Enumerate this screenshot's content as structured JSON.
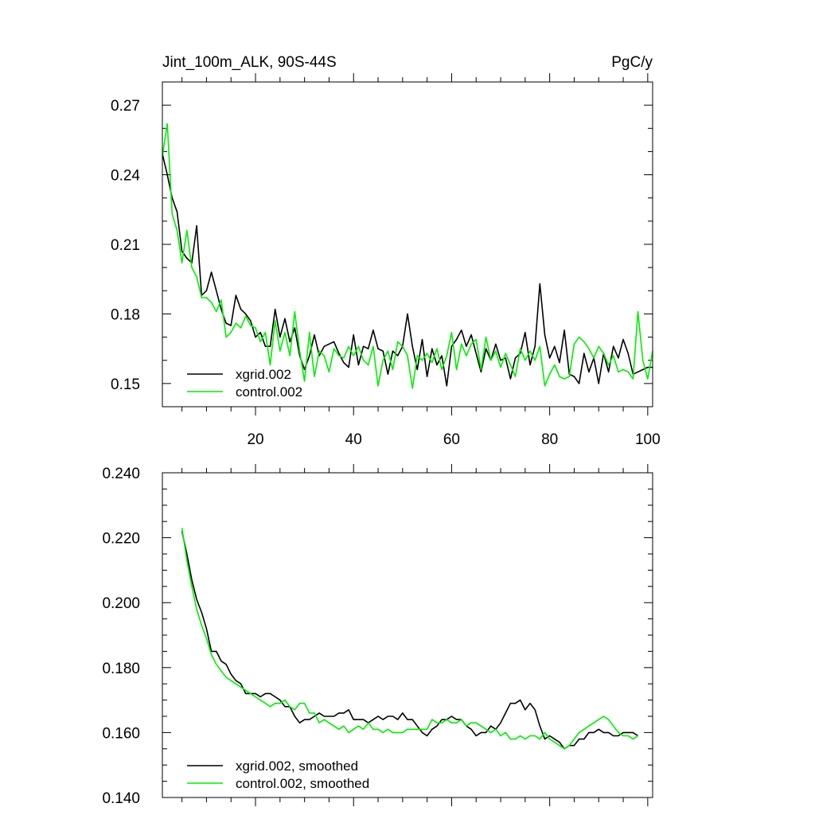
{
  "figure": {
    "title_left": "Jint_100m_ALK, 90S-44S",
    "title_right": "PgC/y"
  },
  "colors": {
    "xgrid": "#000000",
    "control": "#00ee00"
  },
  "chart_data": [
    {
      "type": "line",
      "title": "Jint_100m_ALK, 90S-44S",
      "units": "PgC/y",
      "xlim": [
        1,
        101
      ],
      "ylim": [
        0.14,
        0.28
      ],
      "xticks": [
        20,
        40,
        60,
        80,
        100
      ],
      "yticks": [
        0.15,
        0.18,
        0.21,
        0.24,
        0.27
      ],
      "ytick_labels": [
        "0.15",
        "0.18",
        "0.21",
        "0.24",
        "0.27"
      ],
      "legend": "bottom-left",
      "series": [
        {
          "name": "xgrid.002",
          "color": "#000000",
          "x": [
            1,
            2,
            3,
            4,
            5,
            6,
            7,
            8,
            9,
            10,
            11,
            12,
            13,
            14,
            15,
            16,
            17,
            18,
            19,
            20,
            21,
            22,
            23,
            24,
            25,
            26,
            27,
            28,
            29,
            30,
            31,
            32,
            33,
            34,
            35,
            36,
            37,
            38,
            39,
            40,
            41,
            42,
            43,
            44,
            45,
            46,
            47,
            48,
            49,
            50,
            51,
            52,
            53,
            54,
            55,
            56,
            57,
            58,
            59,
            60,
            61,
            62,
            63,
            64,
            65,
            66,
            67,
            68,
            69,
            70,
            71,
            72,
            73,
            74,
            75,
            76,
            77,
            78,
            79,
            80,
            81,
            82,
            83,
            84,
            85,
            86,
            87,
            88,
            89,
            90,
            91,
            92,
            93,
            94,
            95,
            96,
            97,
            98,
            99,
            100,
            101
          ],
          "values": [
            0.249,
            0.24,
            0.23,
            0.224,
            0.207,
            0.204,
            0.202,
            0.218,
            0.188,
            0.19,
            0.198,
            0.19,
            0.182,
            0.176,
            0.175,
            0.188,
            0.182,
            0.18,
            0.177,
            0.17,
            0.172,
            0.166,
            0.166,
            0.182,
            0.17,
            0.178,
            0.168,
            0.174,
            0.162,
            0.156,
            0.162,
            0.171,
            0.162,
            0.166,
            0.167,
            0.168,
            0.163,
            0.159,
            0.157,
            0.171,
            0.158,
            0.166,
            0.165,
            0.173,
            0.165,
            0.164,
            0.154,
            0.164,
            0.162,
            0.166,
            0.18,
            0.166,
            0.156,
            0.169,
            0.153,
            0.165,
            0.158,
            0.162,
            0.149,
            0.166,
            0.169,
            0.173,
            0.166,
            0.171,
            0.163,
            0.155,
            0.165,
            0.16,
            0.167,
            0.16,
            0.161,
            0.152,
            0.161,
            0.163,
            0.172,
            0.158,
            0.166,
            0.193,
            0.171,
            0.161,
            0.166,
            0.159,
            0.173,
            0.154,
            0.153,
            0.15,
            0.163,
            0.155,
            0.161,
            0.15,
            0.163,
            0.155,
            0.166,
            0.161,
            0.169,
            0.163,
            0.154,
            0.155,
            0.156,
            0.157,
            0.157
          ]
        },
        {
          "name": "control.002",
          "color": "#00ee00",
          "x": [
            1,
            2,
            3,
            4,
            5,
            6,
            7,
            8,
            9,
            10,
            11,
            12,
            13,
            14,
            15,
            16,
            17,
            18,
            19,
            20,
            21,
            22,
            23,
            24,
            25,
            26,
            27,
            28,
            29,
            30,
            31,
            32,
            33,
            34,
            35,
            36,
            37,
            38,
            39,
            40,
            41,
            42,
            43,
            44,
            45,
            46,
            47,
            48,
            49,
            50,
            51,
            52,
            53,
            54,
            55,
            56,
            57,
            58,
            59,
            60,
            61,
            62,
            63,
            64,
            65,
            66,
            67,
            68,
            69,
            70,
            71,
            72,
            73,
            74,
            75,
            76,
            77,
            78,
            79,
            80,
            81,
            82,
            83,
            84,
            85,
            86,
            87,
            88,
            89,
            90,
            91,
            92,
            93,
            94,
            95,
            96,
            97,
            98,
            99,
            100,
            101
          ],
          "values": [
            0.248,
            0.262,
            0.223,
            0.216,
            0.202,
            0.216,
            0.2,
            0.196,
            0.187,
            0.187,
            0.185,
            0.181,
            0.186,
            0.17,
            0.172,
            0.176,
            0.174,
            0.179,
            0.175,
            0.174,
            0.168,
            0.172,
            0.158,
            0.177,
            0.164,
            0.172,
            0.162,
            0.181,
            0.164,
            0.151,
            0.172,
            0.153,
            0.164,
            0.162,
            0.155,
            0.165,
            0.162,
            0.161,
            0.166,
            0.162,
            0.166,
            0.16,
            0.158,
            0.166,
            0.149,
            0.16,
            0.164,
            0.156,
            0.168,
            0.166,
            0.162,
            0.148,
            0.162,
            0.16,
            0.163,
            0.159,
            0.165,
            0.156,
            0.162,
            0.172,
            0.156,
            0.167,
            0.162,
            0.167,
            0.169,
            0.156,
            0.17,
            0.16,
            0.164,
            0.157,
            0.163,
            0.158,
            0.153,
            0.165,
            0.16,
            0.164,
            0.16,
            0.166,
            0.149,
            0.154,
            0.158,
            0.153,
            0.152,
            0.153,
            0.167,
            0.17,
            0.168,
            0.165,
            0.161,
            0.166,
            0.163,
            0.158,
            0.162,
            0.155,
            0.156,
            0.155,
            0.152,
            0.181,
            0.16,
            0.152,
            0.164
          ]
        }
      ]
    },
    {
      "type": "line",
      "ylim": [
        0.14,
        0.24
      ],
      "xlim": [
        1,
        101
      ],
      "yticks": [
        0.14,
        0.16,
        0.18,
        0.2,
        0.22,
        0.24
      ],
      "ytick_labels": [
        "0.140",
        "0.160",
        "0.180",
        "0.200",
        "0.220",
        "0.240"
      ],
      "xticks": [
        20,
        40,
        60,
        80,
        100
      ],
      "legend": "bottom-left",
      "series": [
        {
          "name": "xgrid.002, smoothed",
          "color": "#000000",
          "x": [
            5,
            6,
            7,
            8,
            9,
            10,
            11,
            12,
            13,
            14,
            15,
            16,
            17,
            18,
            19,
            20,
            21,
            22,
            23,
            24,
            25,
            26,
            27,
            28,
            29,
            30,
            31,
            32,
            33,
            34,
            35,
            36,
            37,
            38,
            39,
            40,
            41,
            42,
            43,
            44,
            45,
            46,
            47,
            48,
            49,
            50,
            51,
            52,
            53,
            54,
            55,
            56,
            57,
            58,
            59,
            60,
            61,
            62,
            63,
            64,
            65,
            66,
            67,
            68,
            69,
            70,
            71,
            72,
            73,
            74,
            75,
            76,
            77,
            78,
            79,
            80,
            81,
            82,
            83,
            84,
            85,
            86,
            87,
            88,
            89,
            90,
            91,
            92,
            93,
            94,
            95,
            96,
            97,
            98
          ],
          "values": [
            0.222,
            0.215,
            0.207,
            0.201,
            0.197,
            0.192,
            0.185,
            0.185,
            0.182,
            0.181,
            0.178,
            0.176,
            0.175,
            0.172,
            0.172,
            0.172,
            0.171,
            0.172,
            0.172,
            0.171,
            0.17,
            0.168,
            0.168,
            0.165,
            0.163,
            0.164,
            0.164,
            0.165,
            0.166,
            0.165,
            0.165,
            0.165,
            0.166,
            0.166,
            0.167,
            0.164,
            0.164,
            0.164,
            0.163,
            0.164,
            0.165,
            0.164,
            0.165,
            0.165,
            0.164,
            0.166,
            0.164,
            0.164,
            0.162,
            0.16,
            0.159,
            0.161,
            0.162,
            0.164,
            0.164,
            0.165,
            0.164,
            0.164,
            0.162,
            0.161,
            0.159,
            0.16,
            0.16,
            0.162,
            0.161,
            0.163,
            0.166,
            0.169,
            0.169,
            0.17,
            0.167,
            0.169,
            0.167,
            0.162,
            0.158,
            0.159,
            0.158,
            0.157,
            0.155,
            0.156,
            0.156,
            0.158,
            0.158,
            0.16,
            0.16,
            0.161,
            0.16,
            0.16,
            0.159,
            0.159,
            0.16,
            0.16,
            0.16,
            0.159
          ]
        },
        {
          "name": "control.002, smoothed",
          "color": "#00ee00",
          "x": [
            5,
            6,
            7,
            8,
            9,
            10,
            11,
            12,
            13,
            14,
            15,
            16,
            17,
            18,
            19,
            20,
            21,
            22,
            23,
            24,
            25,
            26,
            27,
            28,
            29,
            30,
            31,
            32,
            33,
            34,
            35,
            36,
            37,
            38,
            39,
            40,
            41,
            42,
            43,
            44,
            45,
            46,
            47,
            48,
            49,
            50,
            51,
            52,
            53,
            54,
            55,
            56,
            57,
            58,
            59,
            60,
            61,
            62,
            63,
            64,
            65,
            66,
            67,
            68,
            69,
            70,
            71,
            72,
            73,
            74,
            75,
            76,
            77,
            78,
            79,
            80,
            81,
            82,
            83,
            84,
            85,
            86,
            87,
            88,
            89,
            90,
            91,
            92,
            93,
            94,
            95,
            96,
            97,
            98
          ],
          "values": [
            0.223,
            0.213,
            0.205,
            0.198,
            0.193,
            0.189,
            0.184,
            0.181,
            0.179,
            0.177,
            0.176,
            0.175,
            0.174,
            0.173,
            0.172,
            0.171,
            0.17,
            0.169,
            0.168,
            0.169,
            0.169,
            0.17,
            0.168,
            0.167,
            0.169,
            0.169,
            0.166,
            0.166,
            0.163,
            0.164,
            0.163,
            0.162,
            0.161,
            0.162,
            0.16,
            0.161,
            0.162,
            0.161,
            0.163,
            0.161,
            0.161,
            0.16,
            0.161,
            0.16,
            0.16,
            0.16,
            0.161,
            0.161,
            0.161,
            0.161,
            0.161,
            0.164,
            0.163,
            0.163,
            0.164,
            0.163,
            0.163,
            0.164,
            0.162,
            0.163,
            0.163,
            0.162,
            0.161,
            0.16,
            0.161,
            0.159,
            0.16,
            0.158,
            0.158,
            0.159,
            0.158,
            0.159,
            0.159,
            0.158,
            0.16,
            0.158,
            0.157,
            0.156,
            0.155,
            0.156,
            0.158,
            0.16,
            0.161,
            0.162,
            0.163,
            0.164,
            0.165,
            0.164,
            0.162,
            0.16,
            0.159,
            0.159,
            0.158,
            0.159
          ]
        }
      ]
    }
  ]
}
